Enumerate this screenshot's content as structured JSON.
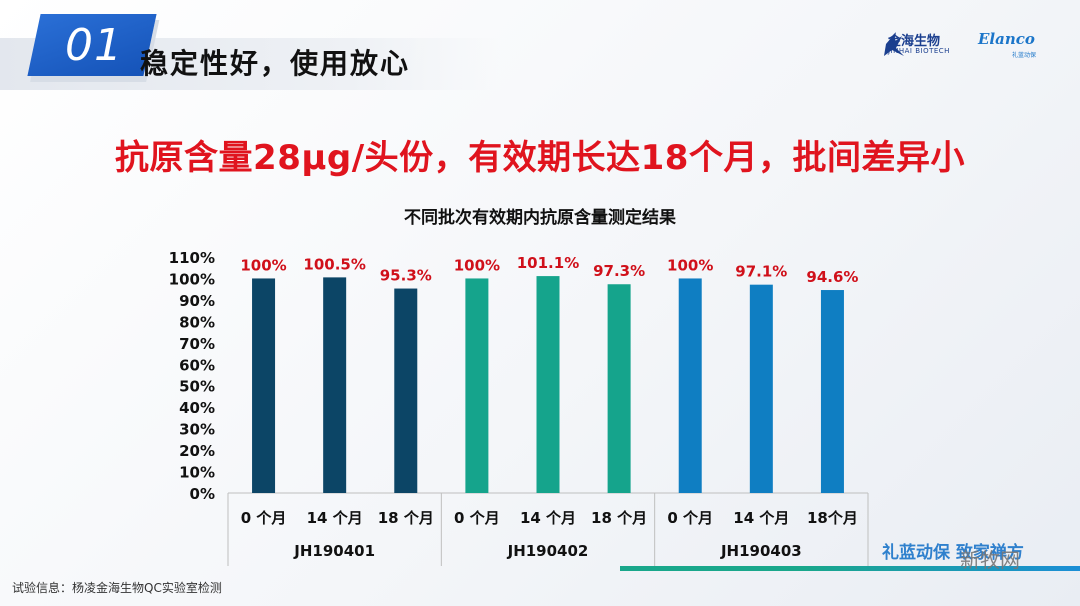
{
  "slide": {
    "number": "01",
    "heading": "稳定性好，使用放心",
    "headline": "抗原含量28μg/头份，有效期长达18个月，批间差异小",
    "footnote": "试验信息：杨凌金海生物QC实验室检测"
  },
  "logos": {
    "jinhai_cn": "金海生物",
    "jinhai_en": "JINHAI BIOTECH",
    "elanco_en": "Elanco",
    "elanco_cn": "礼蓝动保"
  },
  "watermark": {
    "text": "礼蓝动保 致家禅方",
    "site": "新牧网"
  },
  "colors": {
    "accent_red": "#e0141e",
    "badge_blue": "#1e62cc"
  },
  "chart_data": {
    "type": "bar",
    "title": "不同批次有效期内抗原含量测定结果",
    "xlabel": "",
    "ylabel": "",
    "ylim": [
      0,
      110
    ],
    "yticks": [
      "0%",
      "10%",
      "20%",
      "30%",
      "40%",
      "50%",
      "60%",
      "70%",
      "80%",
      "90%",
      "100%",
      "110%"
    ],
    "grid": false,
    "groups": [
      {
        "name": "JH190401",
        "color": "#0c4566",
        "categories": [
          "0 个月",
          "14 个月",
          "18 个月"
        ],
        "values": [
          100,
          100.5,
          95.3
        ],
        "labels": [
          "100%",
          "100.5%",
          "95.3%"
        ]
      },
      {
        "name": "JH190402",
        "color": "#15a48c",
        "categories": [
          "0 个月",
          "14 个月",
          "18 个月"
        ],
        "values": [
          100,
          101.1,
          97.3
        ],
        "labels": [
          "100%",
          "101.1%",
          "97.3%"
        ]
      },
      {
        "name": "JH190403",
        "color": "#0f7ec2",
        "categories": [
          "0 个月",
          "14 个月",
          "18个月"
        ],
        "values": [
          100,
          97.1,
          94.6
        ],
        "labels": [
          "100%",
          "97.1%",
          "94.6%"
        ]
      }
    ],
    "label_color": "#d0101a"
  }
}
